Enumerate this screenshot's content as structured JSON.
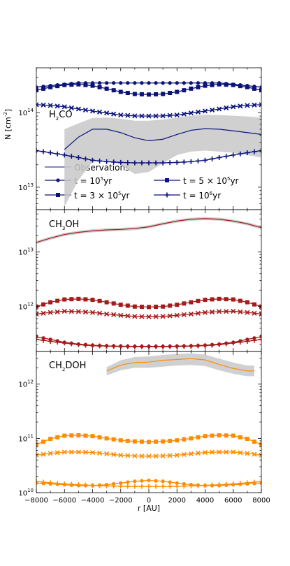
{
  "figure": {
    "xlabel": "r [AU]",
    "ylabel": "N [cm",
    "ylabel_sup": "-2",
    "ylabel_close": "]",
    "xticks": [
      "−8000",
      "−6000",
      "−4000",
      "−2000",
      "0",
      "2000",
      "4000",
      "6000",
      "8000"
    ]
  },
  "legend": {
    "observations": "Observations",
    "t1": "t = 10",
    "t1_sup": "5",
    "t1_unit": "yr",
    "t2": "t = 5 × 10",
    "t2_sup": "5",
    "t2_unit": "yr",
    "t3": "t = 3 × 10",
    "t3_sup": "5",
    "t3_unit": "yr",
    "t4": "t = 10",
    "t4_sup": "6",
    "t4_unit": "yr"
  },
  "chart_data": [
    {
      "type": "line",
      "title_main": "H",
      "title_sub": "2",
      "title_rest": "CO",
      "xlabel": "r [AU]",
      "ylabel": "N [cm^-2]",
      "xlim": [
        -8000,
        8000
      ],
      "ylim": [
        5000000000000.0,
        400000000000000.0
      ],
      "yscale": "log",
      "yticks": [
        {
          "base": "10",
          "exp": "13"
        },
        {
          "base": "10",
          "exp": "14"
        }
      ],
      "color": "#0b137a",
      "observations": {
        "x": [
          -6000,
          -5000,
          -4000,
          -3000,
          -2000,
          -1000,
          0,
          1000,
          2000,
          3000,
          4000,
          5000,
          6000,
          7000,
          8000
        ],
        "y": [
          32000000000000.0,
          47000000000000.0,
          60000000000000.0,
          60000000000000.0,
          54000000000000.0,
          46000000000000.0,
          42000000000000.0,
          44000000000000.0,
          51000000000000.0,
          58000000000000.0,
          61000000000000.0,
          60000000000000.0,
          57000000000000.0,
          54000000000000.0,
          51000000000000.0
        ],
        "lower": [
          5500000000000.0,
          12500000000000.0,
          22000000000000.0,
          23000000000000.0,
          20000000000000.0,
          15000000000000.0,
          16000000000000.0,
          21000000000000.0,
          27000000000000.0,
          30000000000000.0,
          31000000000000.0,
          30000000000000.0,
          29000000000000.0,
          27000000000000.0,
          25000000000000.0
        ],
        "upper": [
          60000000000000.0,
          72000000000000.0,
          85000000000000.0,
          86000000000000.0,
          83000000000000.0,
          78000000000000.0,
          78000000000000.0,
          81000000000000.0,
          86000000000000.0,
          91000000000000.0,
          94000000000000.0,
          93000000000000.0,
          91000000000000.0,
          89000000000000.0,
          86000000000000.0
        ]
      },
      "series": [
        {
          "name": "t = 10^5yr",
          "marker": "circle",
          "x": [
            -8000,
            -7000,
            -6000,
            -5000,
            -4000,
            -3000,
            -2000,
            -1000,
            0,
            1000,
            2000,
            3000,
            4000,
            5000,
            6000,
            7000,
            8000
          ],
          "values": [
            220000000000000.0,
            230000000000000.0,
            240000000000000.0,
            250000000000000.0,
            250000000000000.0,
            250000000000000.0,
            250000000000000.0,
            250000000000000.0,
            250000000000000.0,
            250000000000000.0,
            250000000000000.0,
            250000000000000.0,
            250000000000000.0,
            250000000000000.0,
            240000000000000.0,
            230000000000000.0,
            220000000000000.0
          ]
        },
        {
          "name": "t = 5 × 10^5yr",
          "marker": "square",
          "x": [
            -8000,
            -7000,
            -6000,
            -5000,
            -4000,
            -3000,
            -2000,
            -1000,
            0,
            1000,
            2000,
            3000,
            4000,
            5000,
            6000,
            7000,
            8000
          ],
          "values": [
            200000000000000.0,
            220000000000000.0,
            235000000000000.0,
            240000000000000.0,
            230000000000000.0,
            210000000000000.0,
            190000000000000.0,
            178000000000000.0,
            175000000000000.0,
            178000000000000.0,
            190000000000000.0,
            210000000000000.0,
            230000000000000.0,
            240000000000000.0,
            235000000000000.0,
            220000000000000.0,
            200000000000000.0
          ]
        },
        {
          "name": "t = 3 × 10^5yr",
          "marker": "x",
          "x": [
            -8000,
            -7000,
            -6000,
            -5000,
            -4000,
            -3000,
            -2000,
            -1000,
            0,
            1000,
            2000,
            3000,
            4000,
            5000,
            6000,
            7000,
            8000
          ],
          "values": [
            128000000000000.0,
            125000000000000.0,
            120000000000000.0,
            112000000000000.0,
            105000000000000.0,
            99000000000000.0,
            93000000000000.0,
            90500000000000.0,
            90000000000000.0,
            90500000000000.0,
            93000000000000.0,
            99000000000000.0,
            105000000000000.0,
            112000000000000.0,
            120000000000000.0,
            125000000000000.0,
            128000000000000.0
          ]
        },
        {
          "name": "t = 10^6yr",
          "marker": "plus",
          "x": [
            -8000,
            -7000,
            -6000,
            -5000,
            -4000,
            -3000,
            -2000,
            -1000,
            0,
            1000,
            2000,
            3000,
            4000,
            5000,
            6000,
            7000,
            8000
          ],
          "values": [
            31000000000000.0,
            29000000000000.0,
            27000000000000.0,
            25000000000000.0,
            23000000000000.0,
            22000000000000.0,
            21500000000000.0,
            21200000000000.0,
            21200000000000.0,
            21200000000000.0,
            21500000000000.0,
            22000000000000.0,
            23000000000000.0,
            25000000000000.0,
            27000000000000.0,
            29000000000000.0,
            31000000000000.0
          ]
        }
      ]
    },
    {
      "type": "line",
      "title_main": "CH",
      "title_sub": "3",
      "title_rest": "OH",
      "xlabel": "r [AU]",
      "ylabel": "N [cm^-2]",
      "xlim": [
        -8000,
        8000
      ],
      "ylim": [
        150000000000.0,
        60000000000000.0
      ],
      "yscale": "log",
      "yticks": [
        {
          "base": "10",
          "exp": "12"
        },
        {
          "base": "10",
          "exp": "13"
        }
      ],
      "color": "#a51b1b",
      "observations": {
        "x": [
          -8000,
          -7000,
          -6000,
          -5000,
          -4000,
          -3000,
          -2000,
          -1000,
          0,
          1000,
          2000,
          3000,
          4000,
          5000,
          6000,
          7000,
          8000
        ],
        "y": [
          15000000000000.0,
          18000000000000.0,
          21000000000000.0,
          23000000000000.0,
          24500000000000.0,
          25500000000000.0,
          26000000000000.0,
          27000000000000.0,
          29000000000000.0,
          33000000000000.0,
          37000000000000.0,
          40000000000000.0,
          41000000000000.0,
          40000000000000.0,
          37000000000000.0,
          33000000000000.0,
          28000000000000.0
        ],
        "lower": [
          14000000000000.0,
          16800000000000.0,
          19600000000000.0,
          21500000000000.0,
          23000000000000.0,
          23800000000000.0,
          24300000000000.0,
          25200000000000.0,
          27200000000000.0,
          31000000000000.0,
          34600000000000.0,
          37500000000000.0,
          38500000000000.0,
          37500000000000.0,
          34600000000000.0,
          30800000000000.0,
          26000000000000.0
        ],
        "upper": [
          16000000000000.0,
          19200000000000.0,
          22400000000000.0,
          24600000000000.0,
          26200000000000.0,
          27200000000000.0,
          27800000000000.0,
          28800000000000.0,
          31000000000000.0,
          35300000000000.0,
          39600000000000.0,
          42700000000000.0,
          43800000000000.0,
          42700000000000.0,
          39600000000000.0,
          35300000000000.0,
          30000000000000.0
        ]
      },
      "series": [
        {
          "name": "t = 10^5yr",
          "marker": "circle",
          "x": [
            -8000,
            -7000,
            -6000,
            -5000,
            -4000,
            -3000,
            -2000,
            -1000,
            0,
            1000,
            2000,
            3000,
            4000,
            5000,
            6000,
            7000,
            8000
          ],
          "values": [
            280000000000.0,
            250000000000.0,
            220000000000.0,
            205000000000.0,
            195000000000.0,
            190000000000.0,
            188000000000.0,
            186000000000.0,
            186000000000.0,
            186000000000.0,
            188000000000.0,
            190000000000.0,
            195000000000.0,
            205000000000.0,
            220000000000.0,
            250000000000.0,
            280000000000.0
          ]
        },
        {
          "name": "t = 5 × 10^5yr",
          "marker": "square",
          "x": [
            -8000,
            -7000,
            -6000,
            -5000,
            -4000,
            -3000,
            -2000,
            -1000,
            0,
            1000,
            2000,
            3000,
            4000,
            5000,
            6000,
            7000,
            8000
          ],
          "values": [
            1000000000000.0,
            1200000000000.0,
            1350000000000.0,
            1380000000000.0,
            1330000000000.0,
            1200000000000.0,
            1080000000000.0,
            1000000000000.0,
            980000000000.0,
            1000000000000.0,
            1080000000000.0,
            1200000000000.0,
            1330000000000.0,
            1380000000000.0,
            1350000000000.0,
            1200000000000.0,
            1000000000000.0
          ]
        },
        {
          "name": "t = 3 × 10^5yr",
          "marker": "x",
          "x": [
            -8000,
            -7000,
            -6000,
            -5000,
            -4000,
            -3000,
            -2000,
            -1000,
            0,
            1000,
            2000,
            3000,
            4000,
            5000,
            6000,
            7000,
            8000
          ],
          "values": [
            730000000000.0,
            780000000000.0,
            820000000000.0,
            810000000000.0,
            780000000000.0,
            730000000000.0,
            690000000000.0,
            660000000000.0,
            650000000000.0,
            660000000000.0,
            690000000000.0,
            730000000000.0,
            780000000000.0,
            810000000000.0,
            820000000000.0,
            780000000000.0,
            730000000000.0
          ]
        },
        {
          "name": "t = 10^6yr",
          "marker": "plus",
          "x": [
            -8000,
            -7000,
            -6000,
            -5000,
            -4000,
            -3000,
            -2000,
            -1000,
            0,
            1000,
            2000,
            3000,
            4000,
            5000,
            6000,
            7000,
            8000
          ],
          "values": [
            250000000000.0,
            230000000000.0,
            215000000000.0,
            200000000000.0,
            192000000000.0,
            188000000000.0,
            185000000000.0,
            184000000000.0,
            184000000000.0,
            184000000000.0,
            185000000000.0,
            188000000000.0,
            192000000000.0,
            200000000000.0,
            215000000000.0,
            230000000000.0,
            250000000000.0
          ]
        }
      ]
    },
    {
      "type": "line",
      "title_main": "CH",
      "title_sub": "2",
      "title_rest": "DOH",
      "xlabel": "r [AU]",
      "ylabel": "N [cm^-2]",
      "xlim": [
        -8000,
        8000
      ],
      "ylim": [
        10000000000.0,
        4000000000000.0
      ],
      "yscale": "log",
      "yticks": [
        {
          "base": "10",
          "exp": "10"
        },
        {
          "base": "10",
          "exp": "11"
        },
        {
          "base": "10",
          "exp": "12"
        }
      ],
      "color": "#ff8c00",
      "observations": {
        "x": [
          -3000,
          -2000,
          -1000,
          0,
          1000,
          2000,
          3000,
          4000,
          5000,
          6000,
          7000,
          7500
        ],
        "y": [
          1750000000000.0,
          2250000000000.0,
          2500000000000.0,
          2550000000000.0,
          2750000000000.0,
          2850000000000.0,
          2950000000000.0,
          2800000000000.0,
          2300000000000.0,
          1950000000000.0,
          1750000000000.0,
          1750000000000.0
        ],
        "lower": [
          1450000000000.0,
          1800000000000.0,
          2000000000000.0,
          2000000000000.0,
          2100000000000.0,
          2200000000000.0,
          2250000000000.0,
          2150000000000.0,
          1800000000000.0,
          1550000000000.0,
          1400000000000.0,
          1400000000000.0
        ],
        "upper": [
          2050000000000.0,
          2750000000000.0,
          3150000000000.0,
          3250000000000.0,
          3450000000000.0,
          3600000000000.0,
          3700000000000.0,
          3500000000000.0,
          2950000000000.0,
          2500000000000.0,
          2200000000000.0,
          2200000000000.0
        ]
      },
      "series": [
        {
          "name": "t = 10^5yr",
          "marker": "circle",
          "x": [
            -8000,
            -7000,
            -6000,
            -5000,
            -4000,
            -3000,
            -2000,
            -1000,
            0,
            1000,
            2000,
            3000,
            4000,
            5000,
            6000,
            7000,
            8000
          ],
          "values": [
            15000000000.0,
            14500000000.0,
            14000000000.0,
            13500000000.0,
            13500000000.0,
            14000000000.0,
            15000000000.0,
            16200000000.0,
            16800000000.0,
            16200000000.0,
            15000000000.0,
            14000000000.0,
            13500000000.0,
            13500000000.0,
            14000000000.0,
            14500000000.0,
            15000000000.0
          ]
        },
        {
          "name": "t = 5 × 10^5yr",
          "marker": "square",
          "x": [
            -8000,
            -7000,
            -6000,
            -5000,
            -4000,
            -3000,
            -2000,
            -1000,
            0,
            1000,
            2000,
            3000,
            4000,
            5000,
            6000,
            7000,
            8000
          ],
          "values": [
            77000000000.0,
            98000000000.0,
            112000000000.0,
            114000000000.0,
            110000000000.0,
            100000000000.0,
            92000000000.0,
            88000000000.0,
            86000000000.0,
            88000000000.0,
            92000000000.0,
            100000000000.0,
            110000000000.0,
            114000000000.0,
            112000000000.0,
            98000000000.0,
            77000000000.0
          ]
        },
        {
          "name": "t = 3 × 10^5yr",
          "marker": "x",
          "x": [
            -8000,
            -7000,
            -6000,
            -5000,
            -4000,
            -3000,
            -2000,
            -1000,
            0,
            1000,
            2000,
            3000,
            4000,
            5000,
            6000,
            7000,
            8000
          ],
          "values": [
            49000000000.0,
            53000000000.0,
            56000000000.0,
            56000000000.0,
            55000000000.0,
            52000000000.0,
            49000000000.0,
            47500000000.0,
            47000000000.0,
            47500000000.0,
            49000000000.0,
            52000000000.0,
            55000000000.0,
            56000000000.0,
            56000000000.0,
            53000000000.0,
            49000000000.0
          ]
        },
        {
          "name": "t = 10^6yr",
          "marker": "plus",
          "x": [
            -8000,
            -7000,
            -6000,
            -5000,
            -4000,
            -3000,
            -2000,
            -1000,
            0,
            1000,
            2000,
            3000,
            4000,
            5000,
            6000,
            7000,
            8000
          ],
          "values": [
            16000000000.0,
            15200000000.0,
            14500000000.0,
            14000000000.0,
            13600000000.0,
            13300000000.0,
            13100000000.0,
            13000000000.0,
            13000000000.0,
            13000000000.0,
            13100000000.0,
            13300000000.0,
            13600000000.0,
            14000000000.0,
            14500000000.0,
            15200000000.0,
            16000000000.0
          ]
        }
      ]
    }
  ]
}
